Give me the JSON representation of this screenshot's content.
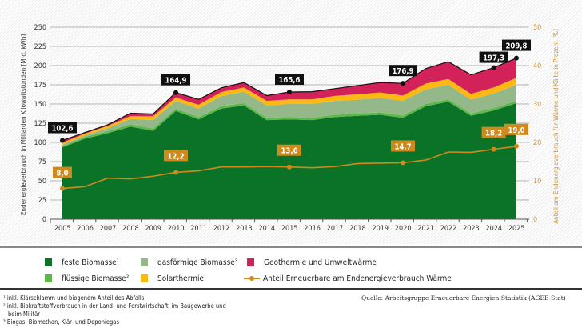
{
  "chart_data": {
    "type": "area",
    "ylabel": "Endenergieverbrauch in Milliarden Kilowattstunden [Mrd. kWh]",
    "y2label": "Anteil am Endenergieverbrauch für Wärme und Kälte in Prozent [%]",
    "ylim": [
      0,
      250
    ],
    "y2lim": [
      0,
      50
    ],
    "yticks": [
      "0",
      "25",
      "50",
      "75",
      "100",
      "125",
      "150",
      "175",
      "200",
      "225",
      "250"
    ],
    "y2ticks": [
      "0",
      "10",
      "20",
      "30",
      "40",
      "50"
    ],
    "grid": true,
    "x": [
      "2005",
      "2006",
      "2007",
      "2008",
      "2009",
      "2010",
      "2011",
      "2012",
      "2013",
      "2014",
      "2015",
      "2016",
      "2017",
      "2018",
      "2019",
      "2020",
      "2021",
      "2022",
      "2023",
      "2024",
      "2025"
    ],
    "series": [
      {
        "name": "feste Biomasse¹",
        "color": "#0a7328",
        "values": [
          93.5,
          105,
          112,
          120.6,
          115,
          141,
          130,
          144,
          148,
          129,
          130,
          129,
          133,
          134.6,
          136,
          132,
          147,
          153,
          134.6,
          141.5,
          151
        ]
      },
      {
        "name": "flüssige Biomasse²",
        "color": "#5cb848",
        "values": [
          1.5,
          2,
          2.5,
          3,
          3,
          3,
          3,
          3,
          3,
          3,
          3,
          3,
          3,
          3,
          3,
          3,
          3,
          3,
          3,
          3,
          3
        ]
      },
      {
        "name": "gasförmige Biomasse³",
        "color": "#94b88a",
        "values": [
          2,
          2,
          4,
          7,
          11,
          10,
          11,
          13,
          15,
          16,
          17,
          18,
          18,
          18,
          19,
          19,
          19,
          19,
          18,
          19,
          21
        ]
      },
      {
        "name": "Solarthermie",
        "color": "#fdb913",
        "values": [
          2.5,
          2.5,
          3,
          3.5,
          5,
          4.5,
          5,
          5.5,
          5.5,
          6,
          6,
          6,
          6.5,
          7,
          7,
          7,
          7.5,
          7.5,
          7.5,
          8,
          9
        ]
      },
      {
        "name": "Geothermie und Umweltwärme",
        "color": "#d3225a",
        "values": [
          3.1,
          1.5,
          1.5,
          3.9,
          3,
          6.4,
          7,
          5.5,
          6.5,
          7,
          9.6,
          10,
          9.5,
          11.4,
          13,
          15.9,
          19.5,
          22.5,
          24.9,
          25.8,
          25.8
        ]
      }
    ],
    "totals": [
      102.6,
      113,
      123,
      138,
      137,
      164.9,
      156,
      171,
      178,
      161,
      165.6,
      166,
      170,
      174,
      178,
      176.9,
      196,
      205,
      188,
      197.3,
      209.8
    ],
    "total_labels": [
      {
        "year": "2005",
        "label": "102,6"
      },
      {
        "year": "2010",
        "label": "164,9"
      },
      {
        "year": "2015",
        "label": "165,6"
      },
      {
        "year": "2020",
        "label": "176,9"
      },
      {
        "year": "2024",
        "label": "197,3"
      },
      {
        "year": "2025",
        "label": "209,8"
      }
    ],
    "share": {
      "name": "Anteil Erneuerbare am Endenergieverbrauch Wärme",
      "color": "#d08a1c",
      "values": [
        8.0,
        8.5,
        10.7,
        10.5,
        11.2,
        12.2,
        12.6,
        13.6,
        13.6,
        13.7,
        13.6,
        13.4,
        13.7,
        14.5,
        14.6,
        14.7,
        15.4,
        17.5,
        17.4,
        18.2,
        19.0
      ],
      "labels": [
        {
          "year": "2005",
          "label": "8,0"
        },
        {
          "year": "2010",
          "label": "12,2"
        },
        {
          "year": "2015",
          "label": "13,6"
        },
        {
          "year": "2020",
          "label": "14,7"
        },
        {
          "year": "2024",
          "label": "18,2"
        },
        {
          "year": "2025",
          "label": "19,0"
        }
      ]
    }
  },
  "legend": {
    "feste": "feste Biomasse¹",
    "fluessig": "flüssige Biomasse²",
    "gas": "gasförmige Biomasse³",
    "solar": "Solarthermie",
    "geo": "Geothermie und Umweltwärme",
    "share": "Anteil Erneuerbare am Endenergieverbrauch Wärme"
  },
  "footnotes": {
    "f1": "¹ inkl. Klärschlamm und biogenem Anteil des Abfalls",
    "f2a": "² inkl. Biokraftstoffverbrauch in der Land- und Forstwirtschaft, im Baugewerbe und",
    "f2b": "beim Militär",
    "f3": "³ Biogas, Biomethan, Klär- und Deponiegas",
    "source": "Quelle: Arbeitsgruppe Erneuerbare Energien-Statistik (AGEE-Stat)"
  }
}
